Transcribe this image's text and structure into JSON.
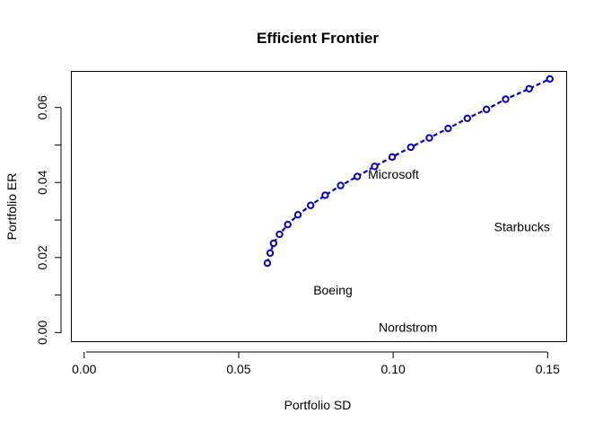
{
  "chart_data": {
    "type": "scatter",
    "title": "Efficient Frontier",
    "xlabel": "Portfolio SD",
    "ylabel": "Portfolio ER",
    "xlim": [
      -0.004,
      0.156
    ],
    "ylim": [
      -0.0023,
      0.0695
    ],
    "grid": false,
    "x_ticks": [
      {
        "value": 0.0,
        "label": "0.00"
      },
      {
        "value": 0.05,
        "label": "0.05"
      },
      {
        "value": 0.1,
        "label": "0.10"
      },
      {
        "value": 0.15,
        "label": "0.15"
      }
    ],
    "y_ticks": [
      {
        "value": 0.0,
        "label": "0.00"
      },
      {
        "value": 0.01,
        "label": ""
      },
      {
        "value": 0.02,
        "label": "0.02"
      },
      {
        "value": 0.03,
        "label": ""
      },
      {
        "value": 0.04,
        "label": "0.04"
      },
      {
        "value": 0.05,
        "label": ""
      },
      {
        "value": 0.06,
        "label": "0.06"
      }
    ],
    "series": [
      {
        "color": "#0000cc",
        "marker": "open-circle",
        "line": "dashed",
        "x": [
          0.0593,
          0.0602,
          0.0613,
          0.0632,
          0.0659,
          0.0692,
          0.0733,
          0.078,
          0.083,
          0.0884,
          0.094,
          0.0997,
          0.1057,
          0.1117,
          0.1178,
          0.124,
          0.1302,
          0.1364,
          0.144,
          0.1507
        ],
        "y": [
          0.0185,
          0.0212,
          0.0238,
          0.0262,
          0.0288,
          0.0314,
          0.0339,
          0.0366,
          0.0392,
          0.0416,
          0.0443,
          0.0468,
          0.0494,
          0.0519,
          0.0544,
          0.0571,
          0.0595,
          0.0622,
          0.065,
          0.0676
        ]
      }
    ],
    "annotations": [
      {
        "text": "Microsoft",
        "x": 0.1001,
        "y": 0.0422
      },
      {
        "text": "Starbucks",
        "x": 0.1417,
        "y": 0.0282
      },
      {
        "text": "Boeing",
        "x": 0.0805,
        "y": 0.0113
      },
      {
        "text": "Nordstrom",
        "x": 0.1048,
        "y": 0.0014
      }
    ]
  }
}
